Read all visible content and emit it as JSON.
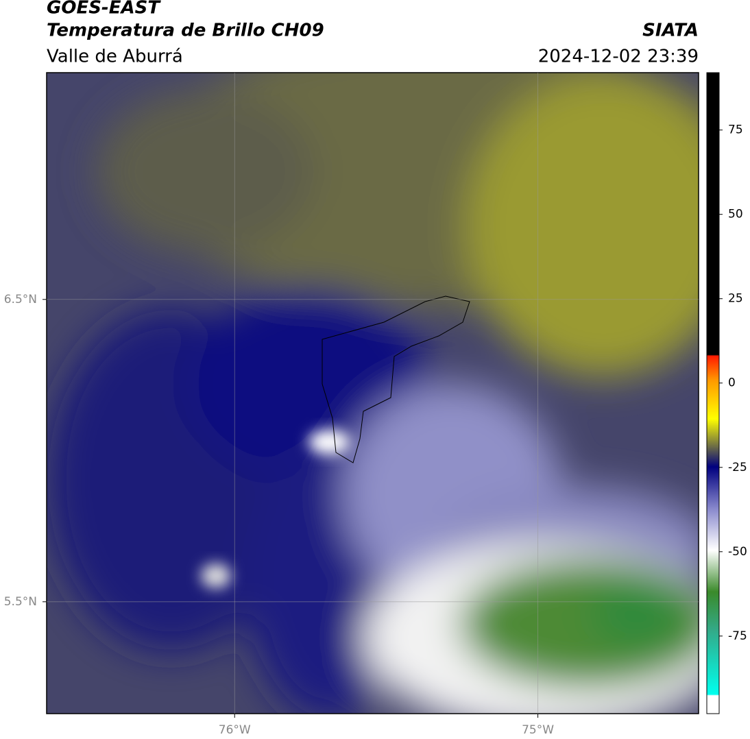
{
  "header": {
    "title": "GOES-EAST",
    "subtitle": "Temperatura de Brillo CH09",
    "region": "Valle de Aburrá",
    "source": "SIATA",
    "timestamp": "2024-12-02 23:39"
  },
  "map": {
    "xlim": [
      -76.62,
      -74.47
    ],
    "ylim": [
      5.13,
      7.25
    ],
    "xticks": [
      {
        "value": -76,
        "label": "76°W"
      },
      {
        "value": -75,
        "label": "75°W"
      }
    ],
    "yticks": [
      {
        "value": 6.5,
        "label": "6.5°N"
      },
      {
        "value": 5.5,
        "label": "5.5°N"
      }
    ],
    "grid": true
  },
  "colorbar": {
    "lim": [
      -98,
      92
    ],
    "ticks": [
      75,
      50,
      25,
      0,
      -25,
      -50,
      -75
    ]
  }
}
